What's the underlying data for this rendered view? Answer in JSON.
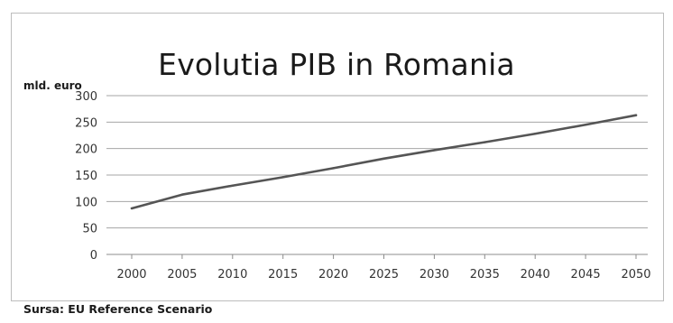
{
  "chart_data": {
    "type": "line",
    "title": "Evolutia PIB in Romania",
    "ylabel": "mld. euro",
    "source": "Sursa: EU Reference Scenario",
    "x": [
      2000,
      2005,
      2010,
      2015,
      2020,
      2025,
      2030,
      2035,
      2040,
      2045,
      2050
    ],
    "series": [
      {
        "values": [
          87,
          113,
          130,
          146,
          163,
          181,
          197,
          212,
          228,
          245,
          263
        ],
        "color": "#555555"
      }
    ],
    "xticks": [
      "2000",
      "2005",
      "2010",
      "2015",
      "2020",
      "2025",
      "2030",
      "2035",
      "2040",
      "2045",
      "2050"
    ],
    "yticks": [
      "0",
      "50",
      "100",
      "150",
      "200",
      "250",
      "300"
    ],
    "ylim": [
      0,
      300
    ],
    "grid": true,
    "legend": "none",
    "gridColor": "#a6a6a6",
    "axisColor": "#8c8c8c"
  }
}
